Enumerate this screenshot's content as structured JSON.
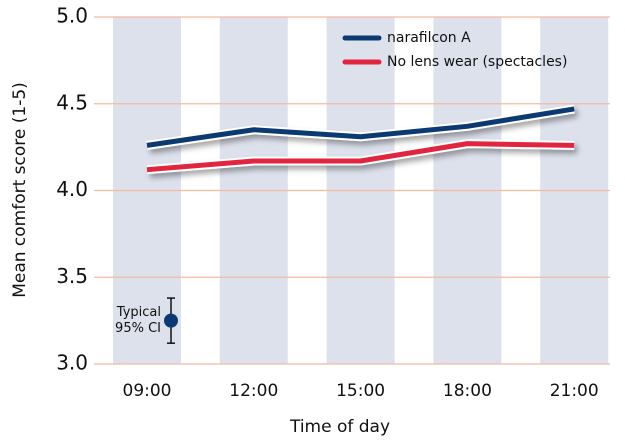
{
  "chart_data": {
    "type": "line",
    "xlabel": "Time of day",
    "ylabel": "Mean comfort score (1-5)",
    "categories": [
      "09:00",
      "12:00",
      "15:00",
      "18:00",
      "21:00"
    ],
    "series": [
      {
        "name": "narafilcon A",
        "color": "#0b3a72",
        "values": [
          4.26,
          4.35,
          4.31,
          4.37,
          4.47
        ]
      },
      {
        "name": "No lens wear (spectacles)",
        "color": "#e1253f",
        "values": [
          4.12,
          4.17,
          4.17,
          4.27,
          4.26
        ]
      }
    ],
    "ylim": [
      3.0,
      5.0
    ],
    "yticks": [
      {
        "value": 3,
        "label": "3.0"
      },
      3.5,
      {
        "value": 4,
        "label": "4.0"
      },
      4.5,
      {
        "value": 5,
        "label": "5.0"
      }
    ],
    "grid": true,
    "legend": "top-right",
    "ci": {
      "label": [
        "Typical",
        "95% CI"
      ],
      "value": 3.25,
      "error": 0.13,
      "color": "#0b3a72"
    }
  }
}
